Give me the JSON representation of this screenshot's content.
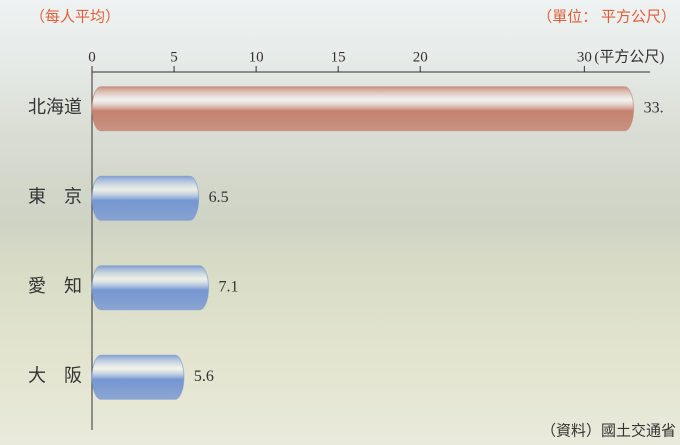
{
  "chart_data": {
    "type": "bar",
    "orientation": "horizontal",
    "subtitle": "（每人平均）",
    "unit_note": "（單位： 平方公尺）",
    "x_unit": "(平方公尺)",
    "source": "（資料）國土交通省",
    "categories": [
      "北海道",
      "東　京",
      "愛　知",
      "大　阪"
    ],
    "values": [
      33,
      6.5,
      7.1,
      5.6
    ],
    "value_labels": [
      "33.",
      "6.5",
      "7.1",
      "5.6"
    ],
    "colors": [
      "#c4806e",
      "#7596d2",
      "#7596d2",
      "#7596d2"
    ],
    "xlim": [
      0,
      34
    ],
    "xticks": [
      0,
      5,
      10,
      15,
      20,
      30
    ]
  }
}
